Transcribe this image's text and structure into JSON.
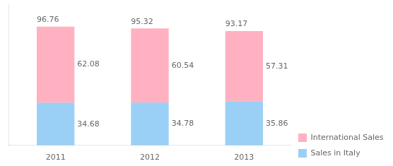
{
  "chart_data": {
    "type": "bar",
    "categories": [
      "2011",
      "2012",
      "2013"
    ],
    "series": [
      {
        "name": "Sales in Italy",
        "values": [
          34.68,
          34.78,
          35.86
        ]
      },
      {
        "name": "International Sales",
        "values": [
          62.08,
          60.54,
          57.31
        ]
      }
    ],
    "totals": [
      96.76,
      95.32,
      93.17
    ],
    "stacked": true,
    "data_labels": true,
    "ylim": [
      0,
      115
    ],
    "grid": false,
    "legend": "lower right",
    "tick_labels": "x"
  }
}
